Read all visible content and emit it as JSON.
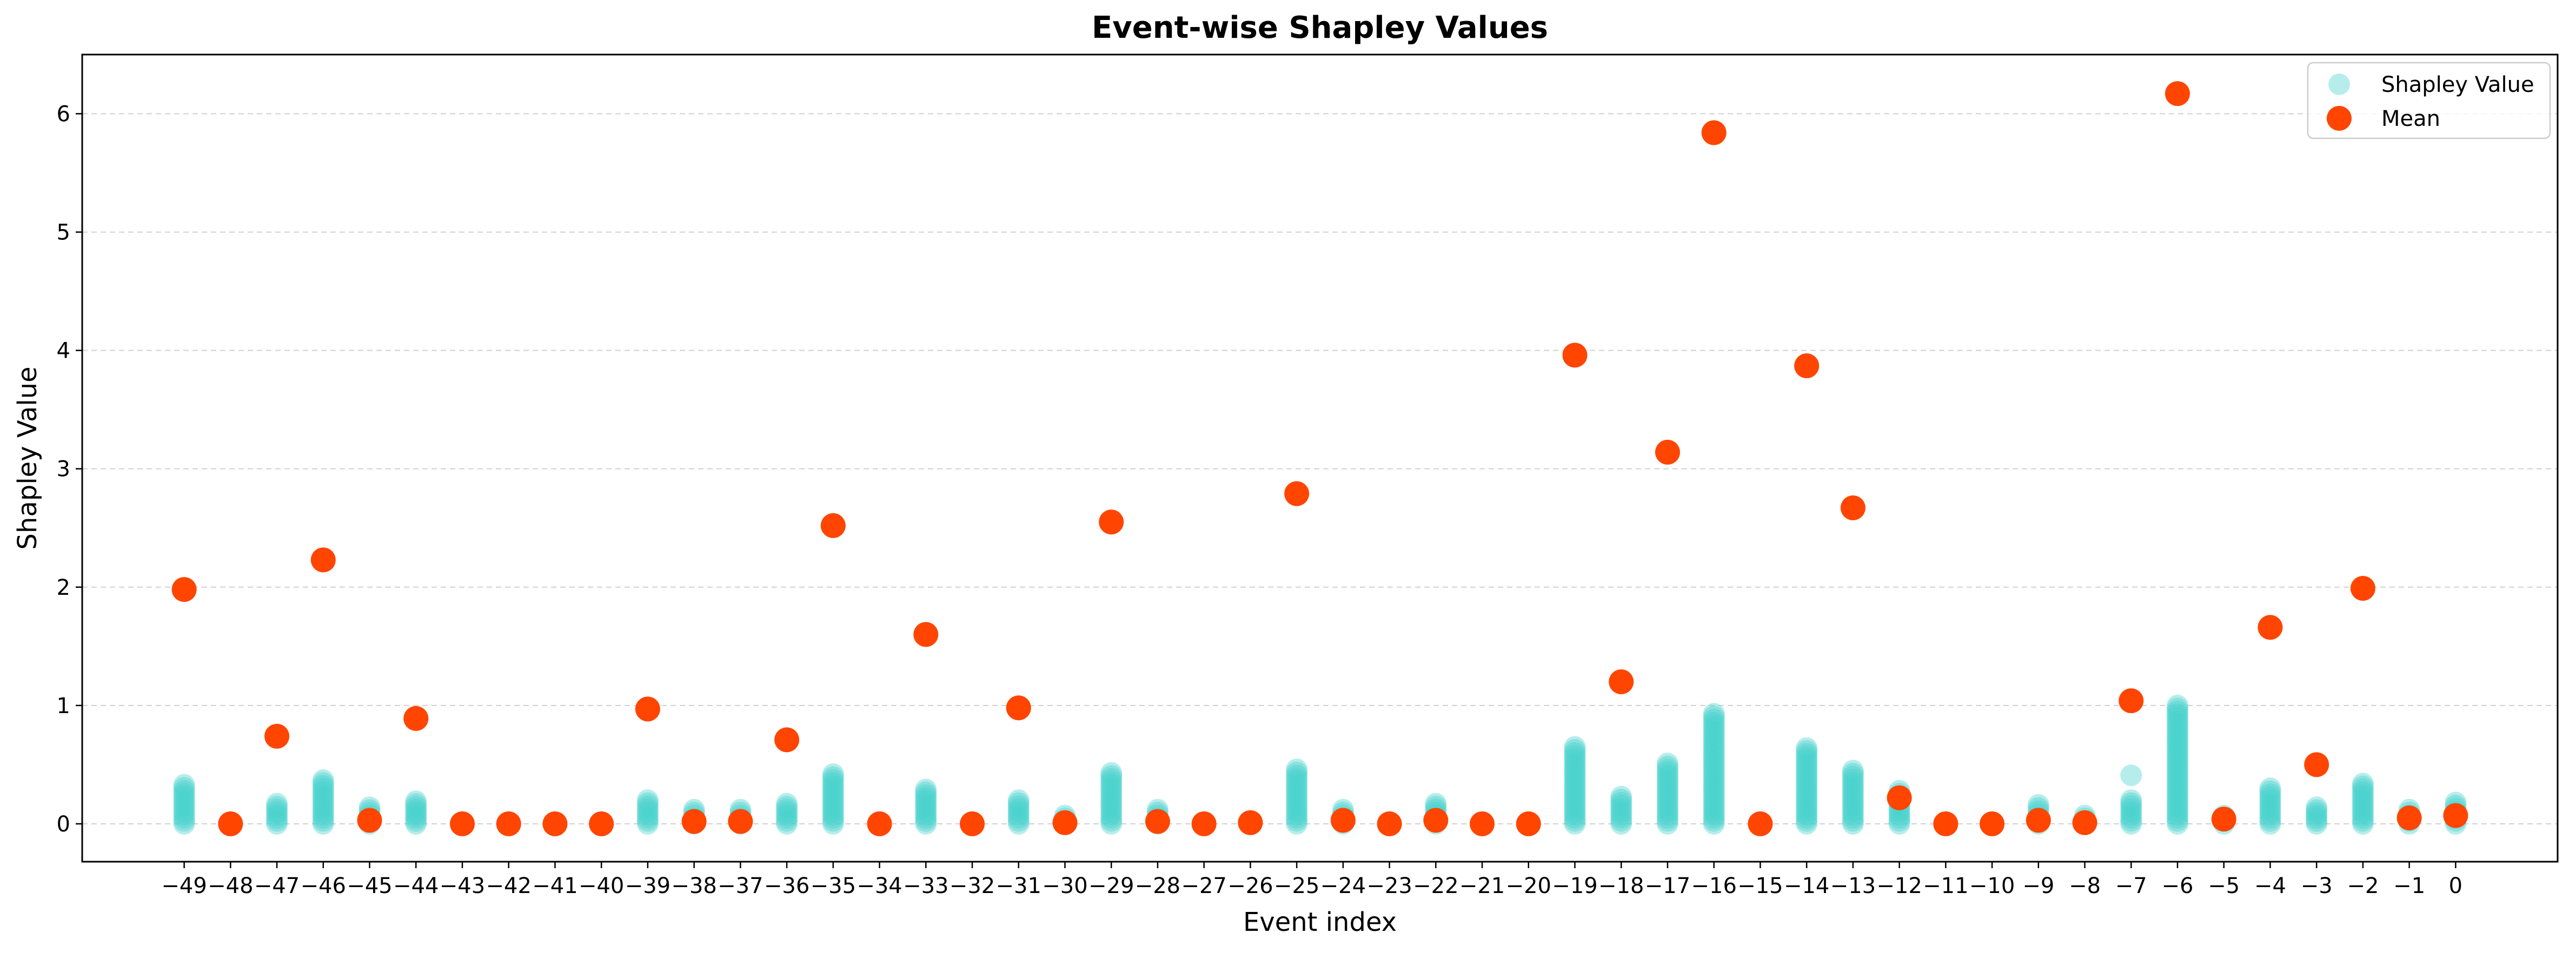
{
  "chart_data": {
    "type": "scatter",
    "title": "Event-wise Shapley Values",
    "xlabel": "Event index",
    "ylabel": "Shapley Value",
    "ylim": [
      -0.32,
      6.5
    ],
    "yticks": [
      0,
      1,
      2,
      3,
      4,
      5,
      6
    ],
    "grid": "horizontal dashed",
    "legend_position": "top-right",
    "categories": [
      -49,
      -48,
      -47,
      -46,
      -45,
      -44,
      -43,
      -42,
      -41,
      -40,
      -39,
      -38,
      -37,
      -36,
      -35,
      -34,
      -33,
      -32,
      -31,
      -30,
      -29,
      -28,
      -27,
      -26,
      -25,
      -24,
      -23,
      -22,
      -21,
      -20,
      -19,
      -18,
      -17,
      -16,
      -15,
      -14,
      -13,
      -12,
      -11,
      -10,
      -9,
      -8,
      -7,
      -6,
      -5,
      -4,
      -3,
      -2,
      -1,
      0
    ],
    "x_tick_labels": [
      "−49",
      "−48",
      "−47",
      "−46",
      "−45",
      "−44",
      "−43",
      "−42",
      "−41",
      "−40",
      "−39",
      "−38",
      "−37",
      "−36",
      "−35",
      "−34",
      "−33",
      "−32",
      "−31",
      "−30",
      "−29",
      "−28",
      "−27",
      "−26",
      "−25",
      "−24",
      "−23",
      "−22",
      "−21",
      "−20",
      "−19",
      "−18",
      "−17",
      "−16",
      "−15",
      "−14",
      "−13",
      "−12",
      "−11",
      "−10",
      "−9",
      "−8",
      "−7",
      "−6",
      "−5",
      "−4",
      "−3",
      "−2",
      "−1",
      "0"
    ],
    "series": [
      {
        "name": "Shapley Value",
        "color": "#48D1CC",
        "alpha": 0.4,
        "marker": "circle",
        "column_ranges": [
          [
            0,
            0.33
          ],
          [
            0,
            0
          ],
          [
            0,
            0.17
          ],
          [
            0,
            0.37
          ],
          [
            0,
            0.14
          ],
          [
            0,
            0.19
          ],
          [
            0,
            0
          ],
          [
            0,
            0
          ],
          [
            0,
            0
          ],
          [
            0,
            0
          ],
          [
            0,
            0.2
          ],
          [
            0,
            0.12
          ],
          [
            0,
            0.12
          ],
          [
            0,
            0.17
          ],
          [
            0,
            0.42
          ],
          [
            0,
            0
          ],
          [
            0,
            0.29
          ],
          [
            0,
            0
          ],
          [
            0,
            0.2
          ],
          [
            0,
            0.07
          ],
          [
            0,
            0.43
          ],
          [
            0,
            0.12
          ],
          [
            0,
            0
          ],
          [
            0,
            0.02
          ],
          [
            0,
            0.46
          ],
          [
            0,
            0.12
          ],
          [
            0,
            0
          ],
          [
            0,
            0.17
          ],
          [
            0,
            0
          ],
          [
            0,
            0
          ],
          [
            0,
            0.65
          ],
          [
            0,
            0.23
          ],
          [
            0,
            0.51
          ],
          [
            0,
            0.93
          ],
          [
            0,
            0
          ],
          [
            0,
            0.64
          ],
          [
            0,
            0.45
          ],
          [
            0,
            0.28
          ],
          [
            0,
            0
          ],
          [
            0,
            0
          ],
          [
            0,
            0.16
          ],
          [
            0,
            0.07
          ],
          [
            0,
            0.2
          ],
          [
            0,
            1.0
          ],
          [
            0,
            0.07
          ],
          [
            0,
            0.3
          ],
          [
            0,
            0.14
          ],
          [
            0,
            0.34
          ],
          [
            0,
            0.12
          ],
          [
            0,
            0.18
          ]
        ],
        "outliers": [
          {
            "x": -7,
            "y": 0.41
          }
        ]
      },
      {
        "name": "Mean",
        "color": "#FF4500",
        "marker": "circle",
        "values": [
          1.98,
          0,
          0.74,
          2.23,
          0.03,
          0.89,
          0,
          0,
          0,
          0,
          0.97,
          0.02,
          0.02,
          0.71,
          2.52,
          0,
          1.6,
          0,
          0.98,
          0.01,
          2.55,
          0.02,
          0,
          0.01,
          2.79,
          0.03,
          0,
          0.03,
          0,
          0,
          3.96,
          1.2,
          3.14,
          5.84,
          0,
          3.87,
          2.67,
          0.22,
          0,
          0,
          0.03,
          0.01,
          1.04,
          6.17,
          0.04,
          1.66,
          0.5,
          1.99,
          0.05,
          0.07
        ]
      }
    ]
  }
}
